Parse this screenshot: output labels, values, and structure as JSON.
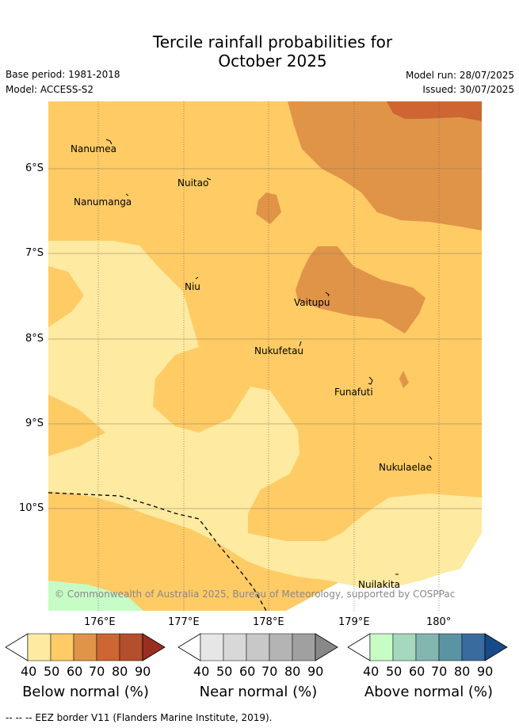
{
  "title": {
    "line1": "Tercile rainfall probabilities for",
    "line2": "October 2025"
  },
  "meta": {
    "base_period": "Base period: 1981-2018",
    "model": "Model: ACCESS-S2",
    "model_run": "Model run: 28/07/2025",
    "issued": "Issued: 30/07/2025"
  },
  "map": {
    "lat_labels": [
      "6°S",
      "7°S",
      "8°S",
      "9°S",
      "10°S"
    ],
    "lon_labels": [
      "176°E",
      "177°E",
      "178°E",
      "179°E",
      "180°"
    ],
    "islands": [
      "Nanumea",
      "Nuitao",
      "Nanumanga",
      "Niu",
      "Vaitupu",
      "Nukufetau",
      "Funafuti",
      "Nukulaelae",
      "Nuilakita"
    ],
    "copyright": "© Commonwealth of Australia 2025, Bureau of Meteorology, supported by COSPPac",
    "colors": {
      "below_50_60": "#fecb65",
      "below_40_50": "#feeaa0",
      "below_60_70": "#e09448",
      "below_70_80": "#cd6633",
      "above_40_50": "#c7fcc6"
    }
  },
  "colorbars": [
    {
      "label": "Below normal (%)",
      "ticks": [
        "40",
        "50",
        "60",
        "70",
        "80",
        "90"
      ],
      "colors": [
        "#feeaa0",
        "#fecb65",
        "#e09448",
        "#cd6633",
        "#b34f2c",
        "#9a2f21"
      ]
    },
    {
      "label": "Near normal (%)",
      "ticks": [
        "40",
        "50",
        "60",
        "70",
        "80",
        "90"
      ],
      "colors": [
        "#e6e6e6",
        "#d8d8d8",
        "#c8c8c8",
        "#b4b4b4",
        "#a0a0a0",
        "#888888"
      ]
    },
    {
      "label": "Above normal (%)",
      "ticks": [
        "40",
        "50",
        "60",
        "70",
        "80",
        "90"
      ],
      "colors": [
        "#c7fcc6",
        "#a5d9bd",
        "#84b6b0",
        "#5a94a2",
        "#3a6b9e",
        "#174a86"
      ]
    }
  ],
  "footer": "--  --  -- EEZ border V11 (Flanders Marine Institute, 2019)."
}
